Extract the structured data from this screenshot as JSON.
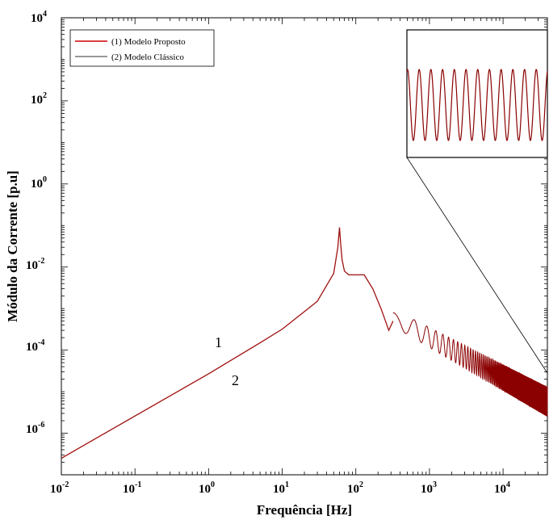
{
  "chart_data": {
    "type": "line",
    "xlabel": "Frequência [Hz]",
    "ylabel": "Módulo da Corrente [p.u]",
    "xscale": "log",
    "yscale": "log",
    "xlim": [
      0.01,
      40000
    ],
    "ylim": [
      1e-07,
      10000
    ],
    "grid": false,
    "legend_position": "top-left",
    "x_ticks": [
      {
        "base": "10",
        "exp": "-2"
      },
      {
        "base": "10",
        "exp": "-1"
      },
      {
        "base": "10",
        "exp": "0"
      },
      {
        "base": "10",
        "exp": "1"
      },
      {
        "base": "10",
        "exp": "2"
      },
      {
        "base": "10",
        "exp": "3"
      },
      {
        "base": "10",
        "exp": "4"
      }
    ],
    "y_ticks": [
      {
        "base": "10",
        "exp": "4"
      },
      {
        "base": "10",
        "exp": "2"
      },
      {
        "base": "10",
        "exp": "0"
      },
      {
        "base": "10",
        "exp": "-2"
      },
      {
        "base": "10",
        "exp": "-4"
      },
      {
        "base": "10",
        "exp": "-6"
      }
    ],
    "series": [
      {
        "name": "(1) Modelo Proposto",
        "color": "#cc0000",
        "x": [
          0.01,
          0.1,
          1,
          5,
          10,
          30,
          50,
          57,
          60,
          62,
          65,
          70,
          80,
          100,
          130,
          170,
          220,
          280,
          320
        ],
        "y": [
          2.5e-07,
          2.6e-06,
          2.7e-05,
          0.00015,
          0.00032,
          0.0015,
          0.007,
          0.03,
          0.09,
          0.04,
          0.015,
          0.008,
          0.0065,
          0.0065,
          0.0065,
          0.003,
          0.001,
          0.0003,
          0.0005
        ],
        "oscillation_region": {
          "x_start": 320,
          "x_end": 40000,
          "upper_envelope": [
            [
              400,
              0.0008
            ],
            [
              40000,
              1.3e-05
            ]
          ],
          "lower_envelope": [
            [
              400,
              0.0003
            ],
            [
              40000,
              2.5e-06
            ]
          ]
        }
      },
      {
        "name": "(2) Modelo Clássico",
        "color": "#333333",
        "x": [
          0.01,
          0.1,
          1,
          5,
          10,
          30,
          50,
          57,
          60,
          62,
          65,
          70,
          80,
          100,
          130,
          170,
          220,
          280,
          320
        ],
        "y": [
          2.5e-07,
          2.6e-06,
          2.7e-05,
          0.00015,
          0.00032,
          0.0015,
          0.007,
          0.03,
          0.09,
          0.04,
          0.015,
          0.008,
          0.0065,
          0.0065,
          0.0065,
          0.003,
          0.001,
          0.0003,
          0.0005
        ]
      }
    ],
    "annotations": [
      "1",
      "2"
    ],
    "inset": {
      "description_type": "zoom",
      "oscillation_cycles": 12
    }
  },
  "colors": {
    "series1": "#cc0000",
    "series2": "#333333",
    "inset_curve": "#8b0000"
  }
}
